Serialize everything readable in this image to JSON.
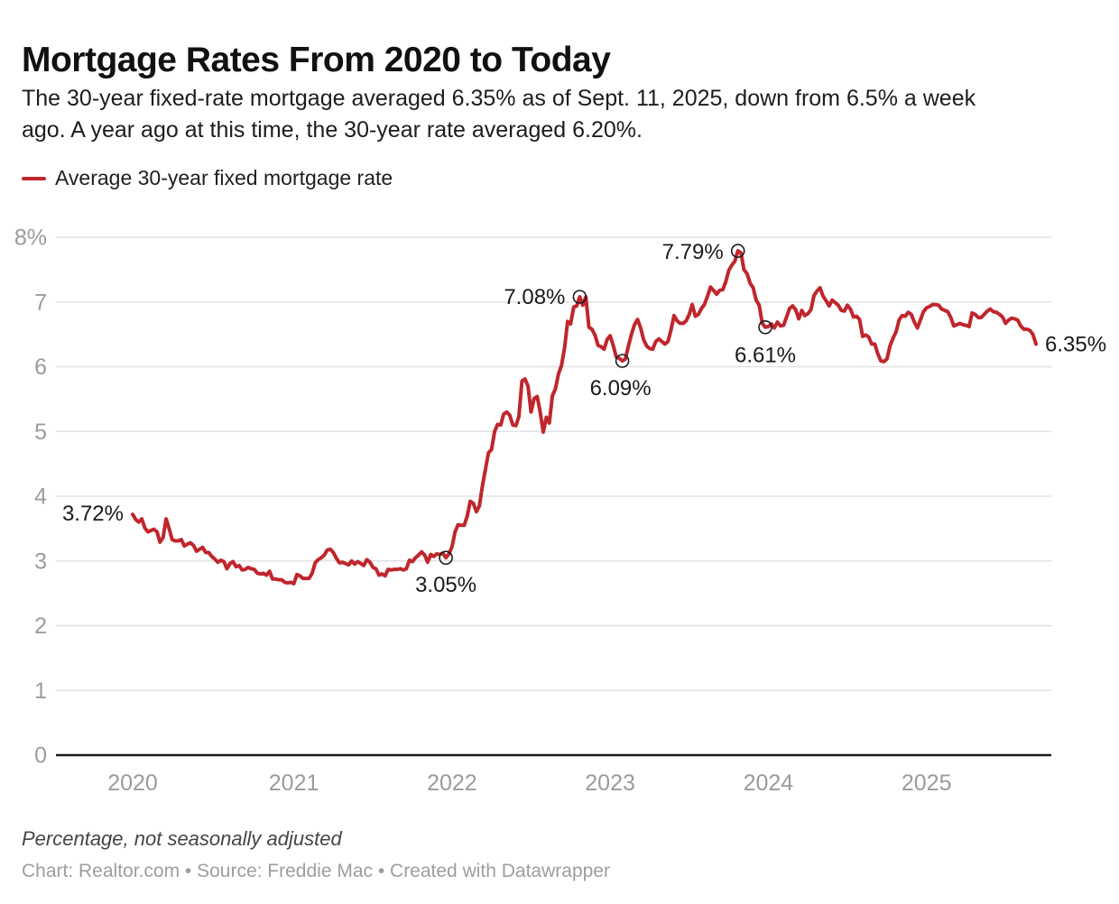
{
  "header": {
    "title": "Mortgage Rates From 2020 to Today",
    "subtitle_lines": [
      "The 30-year fixed-rate mortgage averaged 6.35% as of Sept. 11, 2025, down from 6.5% a week",
      "ago. A year ago at this time, the 30-year rate averaged 6.20%."
    ]
  },
  "legend": {
    "label": "Average 30-year fixed mortgage rate",
    "color": "#c0262c"
  },
  "footer": {
    "note": "Percentage, not seasonally adjusted",
    "credit": "Chart: Realtor.com • Source: Freddie Mac • Created with Datawrapper"
  },
  "chart_data": {
    "type": "line",
    "title": "Mortgage Rates From 2020 to Today",
    "xlabel": "",
    "ylabel": "Percentage, not seasonally adjusted",
    "ylim": [
      0,
      8
    ],
    "grid": "horizontal",
    "legend_position": "top-left",
    "line_color": "#c0262c",
    "x_ticks": [
      "2020",
      "2021",
      "2022",
      "2023",
      "2024",
      "2025"
    ],
    "x_tick_indices": [
      0,
      53,
      105,
      157,
      209,
      261
    ],
    "y_ticks": [
      "0",
      "1",
      "2",
      "3",
      "4",
      "5",
      "6",
      "7",
      "8%"
    ],
    "series": [
      {
        "name": "Average 30-year fixed mortgage rate",
        "unit": "%",
        "frequency": "weekly",
        "start": "2020-01-02",
        "end": "2025-09-11",
        "values": [
          3.72,
          3.64,
          3.6,
          3.65,
          3.51,
          3.45,
          3.47,
          3.49,
          3.45,
          3.29,
          3.36,
          3.65,
          3.5,
          3.33,
          3.31,
          3.31,
          3.33,
          3.23,
          3.26,
          3.28,
          3.24,
          3.15,
          3.18,
          3.21,
          3.13,
          3.13,
          3.07,
          3.03,
          2.98,
          3.01,
          2.99,
          2.88,
          2.96,
          2.99,
          2.91,
          2.93,
          2.86,
          2.87,
          2.9,
          2.88,
          2.87,
          2.81,
          2.8,
          2.81,
          2.78,
          2.84,
          2.72,
          2.72,
          2.71,
          2.71,
          2.67,
          2.66,
          2.67,
          2.65,
          2.79,
          2.77,
          2.73,
          2.73,
          2.73,
          2.81,
          2.97,
          3.02,
          3.05,
          3.09,
          3.17,
          3.18,
          3.13,
          3.04,
          2.97,
          2.98,
          2.96,
          2.94,
          3.0,
          2.95,
          2.99,
          2.96,
          2.93,
          3.02,
          2.98,
          2.9,
          2.88,
          2.78,
          2.8,
          2.77,
          2.87,
          2.86,
          2.87,
          2.87,
          2.88,
          2.86,
          2.88,
          3.01,
          2.99,
          3.05,
          3.09,
          3.14,
          3.09,
          2.98,
          3.1,
          3.07,
          3.11,
          3.1,
          3.12,
          3.05,
          3.11,
          3.22,
          3.45,
          3.56,
          3.55,
          3.55,
          3.69,
          3.92,
          3.89,
          3.76,
          3.85,
          4.16,
          4.42,
          4.67,
          4.72,
          5.0,
          5.11,
          5.1,
          5.27,
          5.3,
          5.25,
          5.1,
          5.09,
          5.23,
          5.78,
          5.81,
          5.7,
          5.3,
          5.51,
          5.54,
          5.3,
          4.99,
          5.22,
          5.13,
          5.55,
          5.66,
          5.89,
          6.02,
          6.29,
          6.7,
          6.66,
          6.92,
          6.94,
          7.08,
          6.95,
          7.08,
          6.61,
          6.58,
          6.49,
          6.33,
          6.31,
          6.27,
          6.42,
          6.48,
          6.33,
          6.15,
          6.13,
          6.09,
          6.12,
          6.32,
          6.5,
          6.65,
          6.73,
          6.6,
          6.42,
          6.32,
          6.28,
          6.27,
          6.39,
          6.43,
          6.39,
          6.35,
          6.39,
          6.57,
          6.79,
          6.71,
          6.67,
          6.67,
          6.71,
          6.81,
          6.96,
          6.78,
          6.81,
          6.9,
          6.96,
          7.09,
          7.23,
          7.18,
          7.12,
          7.18,
          7.19,
          7.31,
          7.49,
          7.57,
          7.63,
          7.79,
          7.76,
          7.5,
          7.44,
          7.29,
          7.22,
          7.03,
          6.95,
          6.67,
          6.61,
          6.62,
          6.66,
          6.6,
          6.69,
          6.63,
          6.64,
          6.77,
          6.9,
          6.94,
          6.88,
          6.74,
          6.87,
          6.79,
          6.82,
          6.88,
          7.1,
          7.17,
          7.22,
          7.09,
          7.02,
          6.94,
          7.03,
          6.99,
          6.95,
          6.87,
          6.86,
          6.95,
          6.89,
          6.77,
          6.78,
          6.73,
          6.47,
          6.49,
          6.46,
          6.35,
          6.35,
          6.2,
          6.09,
          6.08,
          6.12,
          6.32,
          6.44,
          6.54,
          6.72,
          6.79,
          6.78,
          6.84,
          6.81,
          6.69,
          6.6,
          6.72,
          6.85,
          6.91,
          6.93,
          6.96,
          6.96,
          6.95,
          6.89,
          6.87,
          6.85,
          6.76,
          6.63,
          6.65,
          6.67,
          6.65,
          6.64,
          6.62,
          6.83,
          6.81,
          6.76,
          6.76,
          6.81,
          6.86,
          6.89,
          6.85,
          6.84,
          6.81,
          6.77,
          6.67,
          6.72,
          6.75,
          6.74,
          6.72,
          6.63,
          6.58,
          6.58,
          6.56,
          6.5,
          6.35
        ]
      }
    ],
    "annotations": [
      {
        "label": "3.72%",
        "value": 3.72,
        "index": 0,
        "marker": false
      },
      {
        "label": "3.05%",
        "value": 3.05,
        "index": 103,
        "marker": true
      },
      {
        "label": "7.08%",
        "value": 7.08,
        "index": 147,
        "marker": true
      },
      {
        "label": "6.09%",
        "value": 6.09,
        "index": 161,
        "marker": true
      },
      {
        "label": "7.79%",
        "value": 7.79,
        "index": 199,
        "marker": true
      },
      {
        "label": "6.61%",
        "value": 6.61,
        "index": 208,
        "marker": true
      },
      {
        "label": "6.35%",
        "value": 6.35,
        "index": 297,
        "marker": false
      }
    ]
  }
}
